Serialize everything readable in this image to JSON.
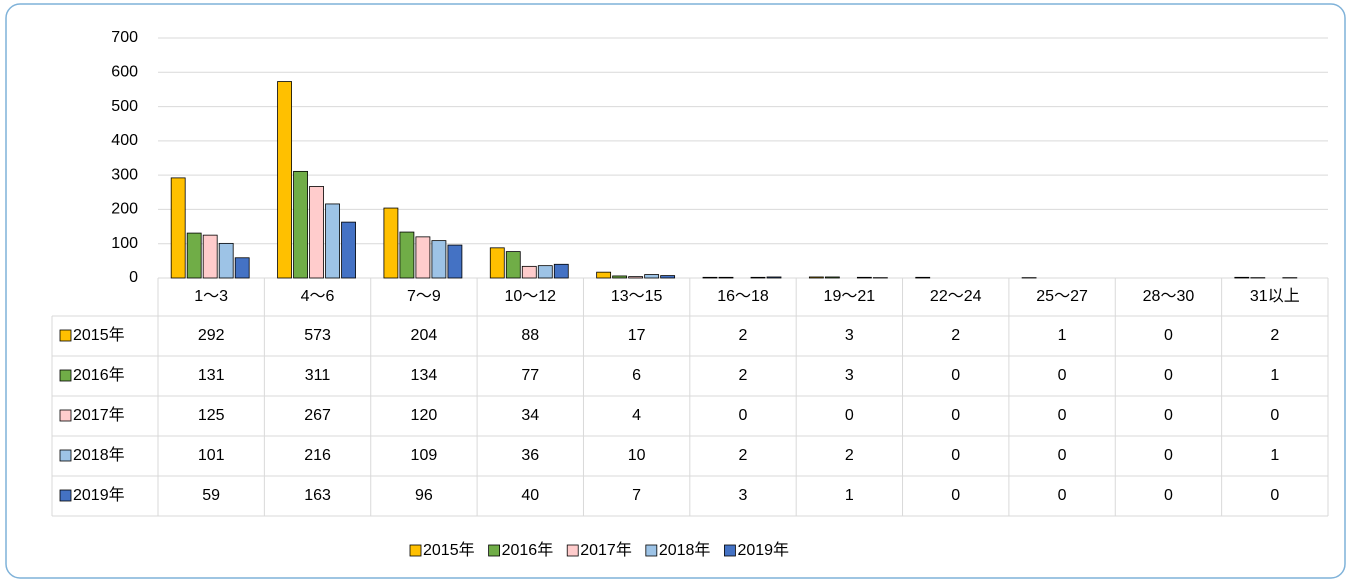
{
  "chart_data": {
    "type": "bar",
    "categories": [
      "1～3",
      "4～6",
      "7～9",
      "10～12",
      "13～15",
      "16～18",
      "19～21",
      "22～24",
      "25～27",
      "28～30",
      "31以上"
    ],
    "series": [
      {
        "name": "2015年",
        "color": "#ffc000",
        "values": [
          292,
          573,
          204,
          88,
          17,
          2,
          3,
          2,
          1,
          0,
          2
        ]
      },
      {
        "name": "2016年",
        "color": "#70ad47",
        "values": [
          131,
          311,
          134,
          77,
          6,
          2,
          3,
          0,
          0,
          0,
          1
        ]
      },
      {
        "name": "2017年",
        "color": "#ffcccc",
        "values": [
          125,
          267,
          120,
          34,
          4,
          0,
          0,
          0,
          0,
          0,
          0
        ]
      },
      {
        "name": "2018年",
        "color": "#9dc3e6",
        "values": [
          101,
          216,
          109,
          36,
          10,
          2,
          2,
          0,
          0,
          0,
          1
        ]
      },
      {
        "name": "2019年",
        "color": "#4472c4",
        "values": [
          59,
          163,
          96,
          40,
          7,
          3,
          1,
          0,
          0,
          0,
          0
        ]
      }
    ],
    "ylim": [
      0,
      700
    ],
    "yticks": [
      0,
      100,
      200,
      300,
      400,
      500,
      600,
      700
    ],
    "grid": true,
    "legend": "bottom"
  }
}
